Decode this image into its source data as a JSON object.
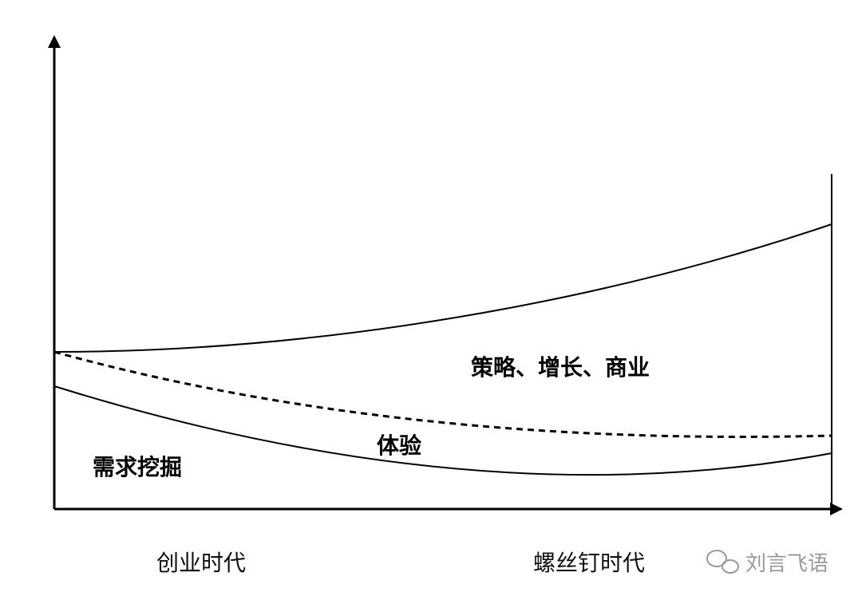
{
  "labels": {
    "upper_region": "策略、增长、商业",
    "middle_region": "体验",
    "lower_region": "需求挖掘"
  },
  "x_axis": {
    "start": "创业时代",
    "end": "螺丝钉时代"
  },
  "watermark": "刘言飞语"
}
